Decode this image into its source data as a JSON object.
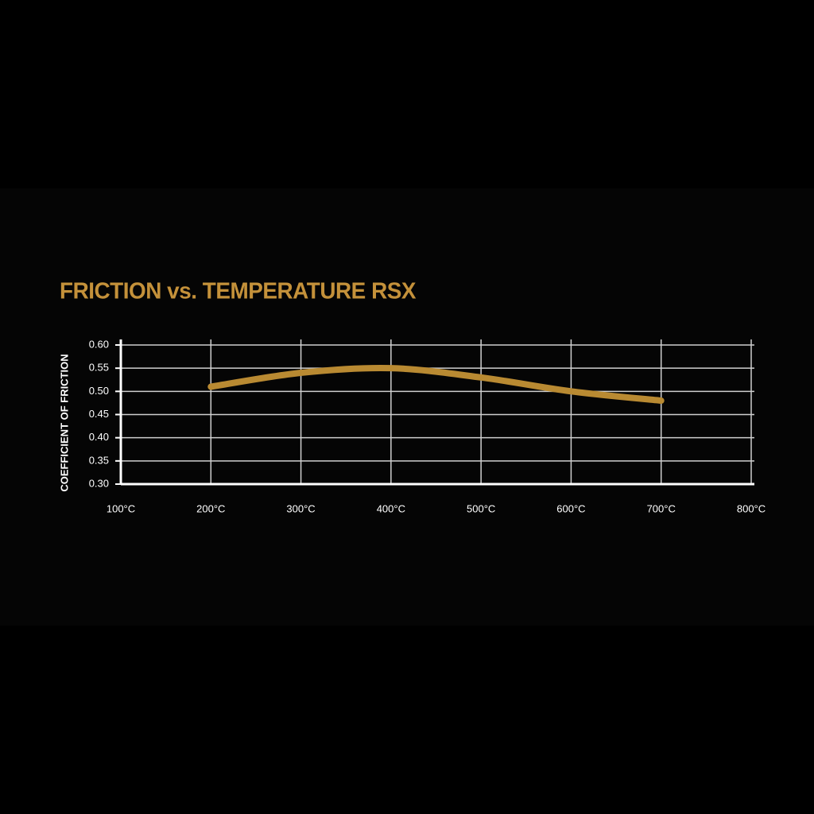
{
  "chart_data": {
    "type": "line",
    "title": "FRICTION vs. TEMPERATURE RSX",
    "ylabel": "COEFFICIENT OF FRICTION",
    "x": [
      200,
      300,
      400,
      500,
      600,
      700
    ],
    "values": [
      0.51,
      0.54,
      0.55,
      0.53,
      0.5,
      0.48
    ],
    "color": "#b98a32",
    "xlim": [
      100,
      800
    ],
    "xticks": [
      {
        "value": 100,
        "label": "100°C"
      },
      {
        "value": 200,
        "label": "200°C"
      },
      {
        "value": 300,
        "label": "300°C"
      },
      {
        "value": 400,
        "label": "400°C"
      },
      {
        "value": 500,
        "label": "500°C"
      },
      {
        "value": 600,
        "label": "600°C"
      },
      {
        "value": 700,
        "label": "700°C"
      },
      {
        "value": 800,
        "label": "800°C"
      }
    ],
    "ylim": [
      0.3,
      0.6
    ],
    "yticks": [
      {
        "value": 0.3,
        "label": "0.30"
      },
      0.35,
      {
        "value": 0.4,
        "label": "0.40"
      },
      0.45,
      {
        "value": 0.5,
        "label": "0.50"
      },
      0.55,
      {
        "value": 0.6,
        "label": "0.60"
      }
    ],
    "grid": true
  }
}
